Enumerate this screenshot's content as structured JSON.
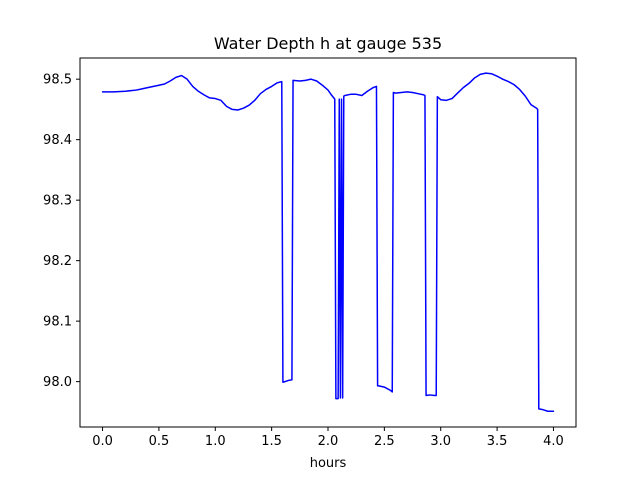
{
  "chart_data": {
    "type": "line",
    "title": "Water Depth h at gauge 535",
    "xlabel": "hours",
    "ylabel": "",
    "xlim": [
      -0.2,
      4.2
    ],
    "ylim": [
      97.925,
      98.535
    ],
    "xticks": [
      0.0,
      0.5,
      1.0,
      1.5,
      2.0,
      2.5,
      3.0,
      3.5,
      4.0
    ],
    "xtick_labels": [
      "0.0",
      "0.5",
      "1.0",
      "1.5",
      "2.0",
      "2.5",
      "3.0",
      "3.5",
      "4.0"
    ],
    "yticks": [
      98.0,
      98.1,
      98.2,
      98.3,
      98.4,
      98.5
    ],
    "ytick_labels": [
      "98.0",
      "98.1",
      "98.2",
      "98.3",
      "98.4",
      "98.5"
    ],
    "grid": false,
    "legend": "none",
    "series": [
      {
        "color": "#0000ff",
        "x": [
          0.0,
          0.1,
          0.2,
          0.3,
          0.35,
          0.4,
          0.5,
          0.55,
          0.6,
          0.65,
          0.7,
          0.75,
          0.8,
          0.85,
          0.9,
          0.95,
          1.0,
          1.05,
          1.1,
          1.15,
          1.2,
          1.25,
          1.3,
          1.35,
          1.4,
          1.45,
          1.5,
          1.55,
          1.59,
          1.6,
          1.65,
          1.68,
          1.69,
          1.75,
          1.8,
          1.85,
          1.9,
          1.95,
          2.0,
          2.03,
          2.06,
          2.07,
          2.09,
          2.1,
          2.11,
          2.12,
          2.13,
          2.14,
          2.15,
          2.2,
          2.25,
          2.3,
          2.35,
          2.4,
          2.43,
          2.44,
          2.45,
          2.5,
          2.55,
          2.57,
          2.58,
          2.6,
          2.65,
          2.7,
          2.75,
          2.8,
          2.85,
          2.86,
          2.87,
          2.9,
          2.95,
          2.96,
          2.97,
          3.0,
          3.05,
          3.1,
          3.15,
          3.2,
          3.25,
          3.3,
          3.35,
          3.4,
          3.45,
          3.5,
          3.55,
          3.6,
          3.65,
          3.7,
          3.75,
          3.8,
          3.85,
          3.86,
          3.87,
          3.9,
          3.95,
          4.0
        ],
        "y": [
          98.479,
          98.479,
          98.48,
          98.482,
          98.484,
          98.486,
          98.49,
          98.492,
          98.497,
          98.503,
          98.506,
          98.5,
          98.488,
          98.48,
          98.474,
          98.469,
          98.468,
          98.465,
          98.455,
          98.45,
          98.449,
          98.452,
          98.457,
          98.465,
          98.476,
          98.483,
          98.488,
          98.494,
          98.496,
          97.999,
          98.002,
          98.003,
          98.498,
          98.497,
          98.498,
          98.5,
          98.497,
          98.49,
          98.482,
          98.474,
          98.467,
          97.972,
          97.972,
          98.467,
          97.973,
          98.467,
          97.973,
          98.472,
          98.473,
          98.475,
          98.475,
          98.473,
          98.48,
          98.486,
          98.488,
          97.993,
          97.993,
          97.991,
          97.986,
          97.983,
          98.478,
          98.477,
          98.478,
          98.479,
          98.478,
          98.476,
          98.474,
          98.473,
          97.977,
          97.978,
          97.977,
          97.977,
          98.471,
          98.466,
          98.465,
          98.468,
          98.477,
          98.486,
          98.493,
          98.502,
          98.508,
          98.51,
          98.509,
          98.505,
          98.5,
          98.496,
          98.491,
          98.483,
          98.472,
          98.458,
          98.452,
          98.45,
          97.955,
          97.954,
          97.951,
          97.951
        ]
      }
    ]
  }
}
